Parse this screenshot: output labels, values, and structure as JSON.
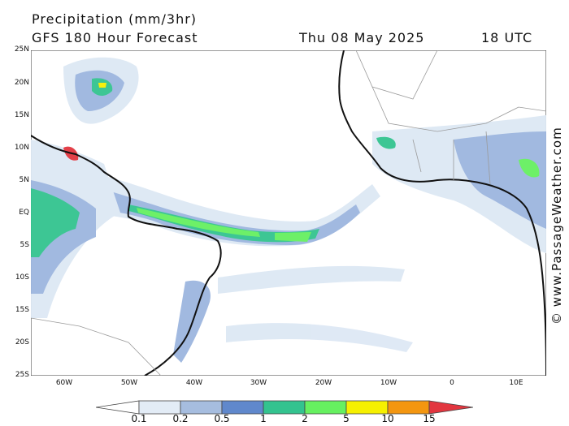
{
  "header": {
    "title": "Precipitation (mm/3hr)",
    "subtitle": "GFS 180 Hour Forecast",
    "date": "Thu 08 May 2025",
    "time": "18 UTC"
  },
  "lat_labels": [
    "25N",
    "20N",
    "15N",
    "10N",
    "5N",
    "EQ",
    "5S",
    "10S",
    "15S",
    "20S",
    "25S"
  ],
  "lon_labels": [
    "60W",
    "50W",
    "40W",
    "30W",
    "20W",
    "10W",
    "0",
    "10E"
  ],
  "credit": "© www.PassageWeather.com",
  "legend": {
    "ticks": [
      "0.1",
      "0.2",
      "0.5",
      "1",
      "2",
      "5",
      "10",
      "15"
    ],
    "colors": [
      "#ffffff",
      "#e3ecf6",
      "#a6bddf",
      "#6088cc",
      "#33c38f",
      "#66f060",
      "#f6f000",
      "#f39610",
      "#e2363f"
    ]
  },
  "palette": {
    "land_line": "#111111",
    "border": "#9a9a9a",
    "light_rain": "#dde8f4",
    "mod_rain": "#9db6df"
  }
}
